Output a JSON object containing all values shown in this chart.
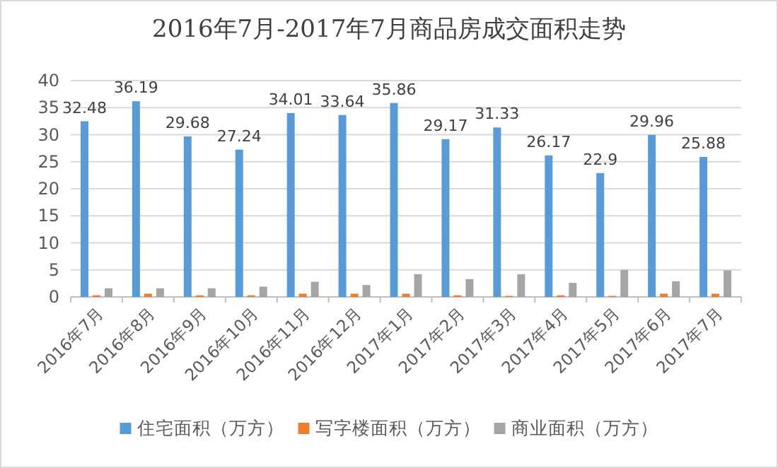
{
  "chart_data": {
    "type": "bar",
    "title": "2016年7月-2017年7月商品房成交面积走势",
    "categories": [
      "2016年7月",
      "2016年8月",
      "2016年9月",
      "2016年10月",
      "2016年11月",
      "2016年12月",
      "2017年1月",
      "2017年2月",
      "2017年3月",
      "2017年4月",
      "2017年5月",
      "2017年6月",
      "2017年7月"
    ],
    "series": [
      {
        "name": "住宅面积（万方）",
        "color": "#5b9bd5",
        "values": [
          32.48,
          36.19,
          29.68,
          27.24,
          34.01,
          33.64,
          35.86,
          29.17,
          31.33,
          26.17,
          22.9,
          29.96,
          25.88
        ],
        "value_labels": [
          "32.48",
          "36.19",
          "29.68",
          "27.24",
          "34.01",
          "33.64",
          "35.86",
          "29.17",
          "31.33",
          "26.17",
          "22.9",
          "29.96",
          "25.88"
        ]
      },
      {
        "name": "写字楼面积（万方）",
        "color": "#ed7d31",
        "values": [
          0.3,
          0.6,
          0.3,
          0.3,
          0.6,
          0.6,
          0.6,
          0.3,
          0.2,
          0.3,
          0.2,
          0.6,
          0.6
        ]
      },
      {
        "name": "商业面积（万方）",
        "color": "#a5a5a5",
        "values": [
          1.6,
          1.6,
          1.6,
          1.9,
          2.8,
          2.2,
          4.2,
          3.3,
          4.2,
          2.6,
          5.0,
          2.9,
          4.9
        ]
      }
    ],
    "ylim": [
      0,
      40
    ],
    "yticks": [
      0,
      5,
      10,
      15,
      20,
      25,
      30,
      35,
      40
    ],
    "grid": "y",
    "legend": "bottom"
  }
}
